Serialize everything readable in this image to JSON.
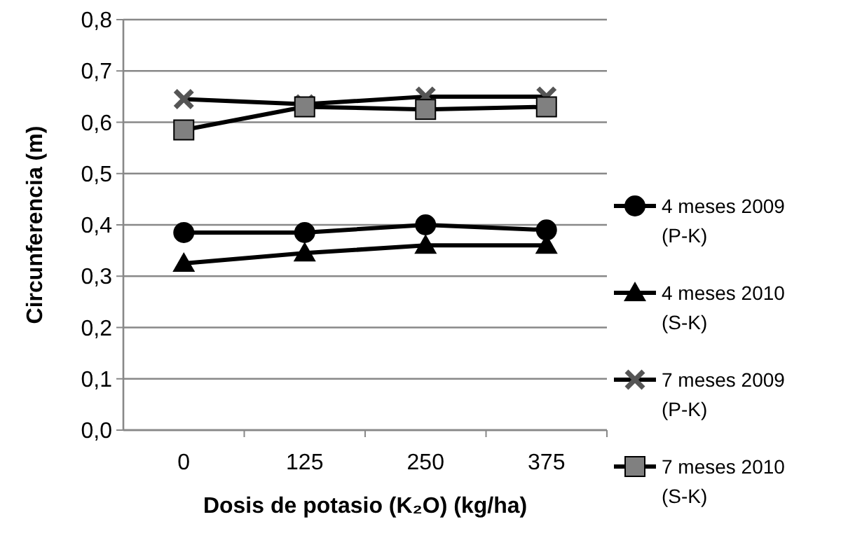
{
  "chart_data": {
    "type": "line",
    "xlabel": "Dosis de potasio (K₂O) (kg/ha)",
    "ylabel": "Circunferencia (m)",
    "categories": [
      "0",
      "125",
      "250",
      "375"
    ],
    "series": [
      {
        "name": "4 meses 2009 (P-K)",
        "color": "#000000",
        "marker": "circle",
        "values": [
          0.385,
          0.385,
          0.4,
          0.39
        ]
      },
      {
        "name": "4 meses 2010 (S-K)",
        "color": "#000000",
        "marker": "triangle",
        "values": [
          0.325,
          0.345,
          0.36,
          0.36
        ]
      },
      {
        "name": "7 meses 2009 (P-K)",
        "color": "#000000",
        "marker": "cross",
        "values": [
          0.645,
          0.635,
          0.65,
          0.65
        ]
      },
      {
        "name": "7 meses 2010 (S-K)",
        "color": "#000000",
        "marker": "square",
        "values": [
          0.585,
          0.63,
          0.625,
          0.63
        ]
      }
    ],
    "ylim": [
      0,
      0.8
    ],
    "yticks": [
      {
        "value": 0,
        "label": "0,0"
      },
      {
        "value": 0.1,
        "label": "0,1"
      },
      {
        "value": 0.2,
        "label": "0,2"
      },
      {
        "value": 0.3,
        "label": "0,3"
      },
      {
        "value": 0.4,
        "label": "0,4"
      },
      {
        "value": 0.5,
        "label": "0,5"
      },
      {
        "value": 0.6,
        "label": "0,6"
      },
      {
        "value": 0.7,
        "label": "0,7"
      },
      {
        "value": 0.8,
        "label": "0,8"
      }
    ],
    "grid": "y",
    "legend": "right",
    "line_style": "solid"
  }
}
